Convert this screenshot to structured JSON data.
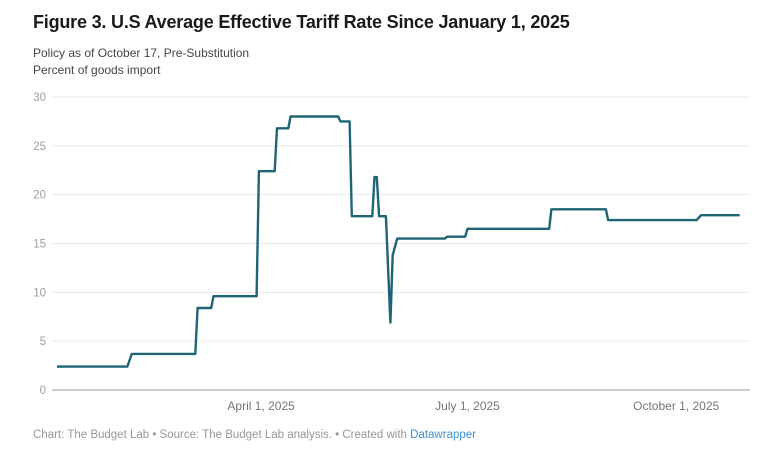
{
  "header": {
    "title": "Figure 3. U.S Average Effective Tariff Rate Since January 1, 2025",
    "subtitle1": "Policy as of October 17, Pre-Substitution",
    "subtitle2": "Percent of goods import"
  },
  "footer": {
    "prefix": "Chart: The Budget Lab • Source: The Budget Lab analysis. • Created with ",
    "link": "Datawrapper"
  },
  "chart_data": {
    "type": "line",
    "title": "Figure 3. U.S Average Effective Tariff Rate Since January 1, 2025",
    "ylabel": "Percent of goods import",
    "ylim": [
      0,
      30
    ],
    "yticks": [
      0,
      5,
      10,
      15,
      20,
      25,
      30
    ],
    "grid": "horizontal",
    "legend": "none",
    "x_start": "2025-01-01",
    "x_end": "2025-11-03",
    "xticks": [
      {
        "date": "2025-04-01",
        "label": "April 1, 2025"
      },
      {
        "date": "2025-07-01",
        "label": "July 1, 2025"
      },
      {
        "date": "2025-10-01",
        "label": "October 1, 2025"
      }
    ],
    "series": [
      {
        "name": "effective_tariff_rate",
        "points": [
          [
            "2025-01-01",
            2.4
          ],
          [
            "2025-02-01",
            2.4
          ],
          [
            "2025-02-03",
            3.7
          ],
          [
            "2025-03-03",
            3.7
          ],
          [
            "2025-03-04",
            8.4
          ],
          [
            "2025-03-10",
            8.4
          ],
          [
            "2025-03-11",
            9.6
          ],
          [
            "2025-03-30",
            9.6
          ],
          [
            "2025-03-31",
            22.4
          ],
          [
            "2025-04-07",
            22.4
          ],
          [
            "2025-04-08",
            26.8
          ],
          [
            "2025-04-13",
            26.8
          ],
          [
            "2025-04-14",
            28.0
          ],
          [
            "2025-05-05",
            28.0
          ],
          [
            "2025-05-06",
            27.5
          ],
          [
            "2025-05-10",
            27.5
          ],
          [
            "2025-05-11",
            17.8
          ],
          [
            "2025-05-20",
            17.8
          ],
          [
            "2025-05-21",
            21.8
          ],
          [
            "2025-05-22",
            21.8
          ],
          [
            "2025-05-23",
            17.8
          ],
          [
            "2025-05-26",
            17.8
          ],
          [
            "2025-05-28",
            6.9
          ],
          [
            "2025-05-29",
            13.8
          ],
          [
            "2025-05-31",
            15.5
          ],
          [
            "2025-06-21",
            15.5
          ],
          [
            "2025-06-22",
            15.7
          ],
          [
            "2025-06-30",
            15.7
          ],
          [
            "2025-07-01",
            16.5
          ],
          [
            "2025-08-06",
            16.5
          ],
          [
            "2025-08-07",
            18.5
          ],
          [
            "2025-08-31",
            18.5
          ],
          [
            "2025-09-01",
            17.4
          ],
          [
            "2025-10-10",
            17.4
          ],
          [
            "2025-10-12",
            17.9
          ],
          [
            "2025-10-29",
            17.9
          ]
        ]
      }
    ],
    "colors": {
      "line": "#1f6475",
      "grid": "#e9e9e9",
      "zero_axis": "#989898",
      "y_tick_text": "#9d9d9d",
      "x_tick_text": "#757575"
    }
  }
}
